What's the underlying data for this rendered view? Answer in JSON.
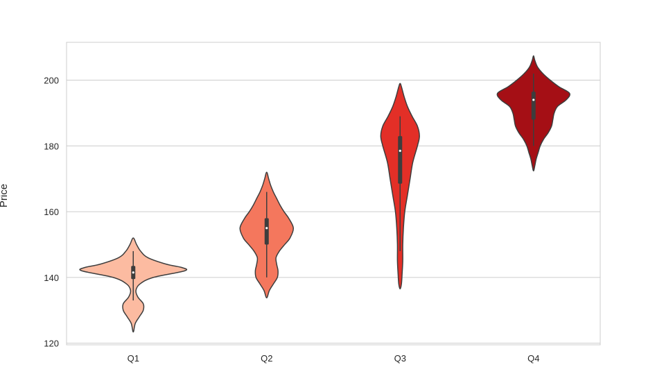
{
  "chart_data": {
    "type": "violin",
    "title": "",
    "xlabel": "",
    "ylabel": "Price",
    "ylim": [
      119.5,
      211.5
    ],
    "yticks": [
      120,
      140,
      160,
      180,
      200
    ],
    "grid": "horizontal",
    "categories": [
      "Q1",
      "Q2",
      "Q3",
      "Q4"
    ],
    "colors": [
      "#fcbba1",
      "#f4775d",
      "#e32f27",
      "#a50f15"
    ],
    "violins": [
      {
        "category": "Q1",
        "color": "#fcbba1",
        "box": {
          "whisker_low": 133,
          "q1": 139.5,
          "median": 141.5,
          "q3": 143.5,
          "whisker_high": 148
        },
        "profile": [
          [
            123.4,
            0.0
          ],
          [
            126,
            0.03
          ],
          [
            128,
            0.09
          ],
          [
            130,
            0.15
          ],
          [
            132,
            0.15
          ],
          [
            134,
            0.07
          ],
          [
            136,
            0.04
          ],
          [
            138,
            0.1
          ],
          [
            140,
            0.3
          ],
          [
            142,
            0.77
          ],
          [
            143,
            0.73
          ],
          [
            144,
            0.5
          ],
          [
            146,
            0.22
          ],
          [
            148,
            0.11
          ],
          [
            150,
            0.05
          ],
          [
            152,
            0.0
          ]
        ]
      },
      {
        "category": "Q2",
        "color": "#f4775d",
        "box": {
          "whisker_low": 140,
          "q1": 150,
          "median": 155,
          "q3": 158,
          "whisker_high": 166
        },
        "profile": [
          [
            133.8,
            0.0
          ],
          [
            136,
            0.04
          ],
          [
            138,
            0.1
          ],
          [
            140,
            0.16
          ],
          [
            142,
            0.17
          ],
          [
            144,
            0.15
          ],
          [
            146,
            0.14
          ],
          [
            148,
            0.19
          ],
          [
            150,
            0.27
          ],
          [
            152,
            0.35
          ],
          [
            155,
            0.4
          ],
          [
            158,
            0.33
          ],
          [
            160,
            0.26
          ],
          [
            162,
            0.2
          ],
          [
            164,
            0.15
          ],
          [
            166,
            0.1
          ],
          [
            168,
            0.06
          ],
          [
            170,
            0.03
          ],
          [
            172,
            0.0
          ]
        ]
      },
      {
        "category": "Q3",
        "color": "#e32f27",
        "box": {
          "whisker_low": 148,
          "q1": 168.5,
          "median": 178.5,
          "q3": 183,
          "whisker_high": 189
        },
        "profile": [
          [
            136.5,
            0.0
          ],
          [
            138,
            0.02
          ],
          [
            141,
            0.03
          ],
          [
            145,
            0.04
          ],
          [
            150,
            0.04
          ],
          [
            155,
            0.05
          ],
          [
            160,
            0.07
          ],
          [
            165,
            0.11
          ],
          [
            170,
            0.15
          ],
          [
            175,
            0.19
          ],
          [
            180,
            0.26
          ],
          [
            183,
            0.29
          ],
          [
            186,
            0.26
          ],
          [
            189,
            0.18
          ],
          [
            192,
            0.11
          ],
          [
            195,
            0.06
          ],
          [
            198,
            0.02
          ],
          [
            199,
            0.0
          ]
        ]
      },
      {
        "category": "Q4",
        "color": "#a50f15",
        "box": {
          "whisker_low": 180,
          "q1": 188,
          "median": 194,
          "q3": 196.5,
          "whisker_high": 202
        },
        "profile": [
          [
            172.4,
            0.0
          ],
          [
            174,
            0.02
          ],
          [
            176,
            0.04
          ],
          [
            178,
            0.07
          ],
          [
            180,
            0.1
          ],
          [
            182,
            0.15
          ],
          [
            184,
            0.22
          ],
          [
            186,
            0.27
          ],
          [
            188,
            0.29
          ],
          [
            190,
            0.31
          ],
          [
            192,
            0.36
          ],
          [
            194,
            0.49
          ],
          [
            196,
            0.54
          ],
          [
            198,
            0.38
          ],
          [
            200,
            0.25
          ],
          [
            202,
            0.14
          ],
          [
            204,
            0.06
          ],
          [
            206,
            0.02
          ],
          [
            207.4,
            0.0
          ]
        ]
      }
    ]
  }
}
